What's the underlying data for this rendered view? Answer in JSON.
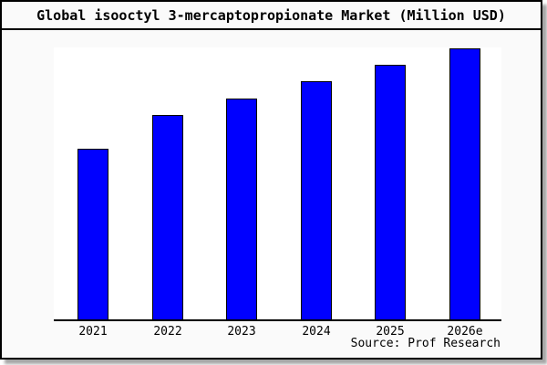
{
  "title": "Global isooctyl 3-mercaptopropionate Market (Million USD)",
  "source_note": "Source: Prof Research",
  "colors": {
    "bar_fill": "#0000ff",
    "bar_border": "#000000",
    "canvas_background": "#fafafa",
    "plot_background": "#ffffff",
    "axis": "#000000",
    "frame_border": "#000000"
  },
  "chart_data": {
    "type": "bar",
    "title": "Global isooctyl 3-mercaptopropionate Market (Million USD)",
    "categories": [
      "2021",
      "2022",
      "2023",
      "2024",
      "2025",
      "2026e"
    ],
    "values": [
      188,
      225,
      244,
      263,
      281,
      299
    ],
    "values_note": "y-axis has no tick labels or gridlines; values are relative estimates read from bar heights (arbitrary units, plot top = 300)",
    "xlabel": "",
    "ylabel": "",
    "ylim": [
      0,
      300
    ],
    "grid": false,
    "legend": false,
    "bar_color": "#0000ff",
    "source": "Source: Prof Research"
  }
}
